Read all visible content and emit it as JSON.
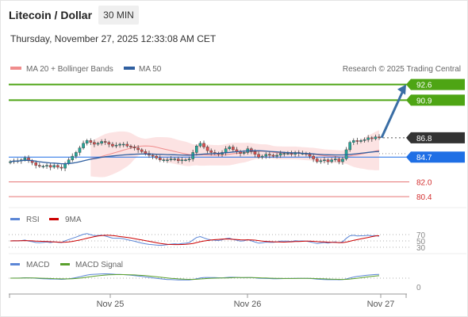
{
  "header": {
    "title": "Litecoin / Dollar",
    "timeframe": "30 MIN",
    "timestamp": "Thursday, November 27, 2025 12:33:08 AM CET"
  },
  "legend": {
    "bollinger": "MA 20 + Bollinger Bands",
    "ma50": "MA 50",
    "credit": "Research © 2025 Trading Central"
  },
  "colors": {
    "bollinger": "#f08c8c",
    "ma50": "#2f5fa0",
    "candle_up": "#26a69a",
    "candle_down": "#e05050",
    "resistance": "#4ea514",
    "support": "#e67575",
    "current_price": "#333333",
    "pivot": "#1f6fe5",
    "arrow": "#3a6ea5",
    "rsi": "#5b86d6",
    "rsi_ma": "#cc0000",
    "macd": "#5b86d6",
    "macd_signal": "#5aa02c"
  },
  "chart_data": {
    "type": "candlestick",
    "instrument": "Litecoin / Dollar",
    "timeframe": "30 MIN",
    "ylim": [
      79.2,
      93.6
    ],
    "x_ticks": [
      "Nov 25",
      "Nov 26",
      "Nov 27"
    ],
    "levels": [
      {
        "value": 92.6,
        "label": "92.6",
        "type": "resistance"
      },
      {
        "value": 90.9,
        "label": "90.9",
        "type": "resistance"
      },
      {
        "value": 86.8,
        "label": "86.8",
        "type": "current"
      },
      {
        "value": 84.7,
        "label": "84.7",
        "type": "pivot"
      },
      {
        "value": 82.0,
        "label": "82.0",
        "type": "support"
      },
      {
        "value": 80.4,
        "label": "80.4",
        "type": "support"
      }
    ],
    "arrow": {
      "from": 86.8,
      "to": 92.6
    },
    "closes": [
      84.2,
      84.3,
      84.3,
      84.4,
      84.6,
      84.3,
      84.1,
      83.8,
      83.7,
      83.7,
      83.8,
      83.6,
      83.8,
      83.6,
      83.5,
      84.0,
      84.4,
      84.8,
      85.2,
      85.7,
      86.2,
      86.5,
      86.3,
      86.1,
      86.2,
      86.4,
      86.3,
      86.1,
      85.9,
      86.0,
      86.1,
      86.1,
      85.9,
      85.8,
      85.7,
      85.5,
      85.3,
      85.1,
      84.9,
      84.8,
      84.6,
      84.4,
      84.4,
      84.4,
      84.5,
      84.5,
      84.3,
      84.4,
      84.4,
      84.5,
      85.2,
      85.9,
      86.2,
      85.8,
      85.4,
      85.2,
      85.1,
      85.0,
      85.2,
      85.6,
      85.8,
      85.5,
      85.3,
      85.1,
      85.2,
      85.6,
      85.3,
      85.0,
      84.7,
      84.8,
      85.0,
      84.9,
      84.8,
      84.9,
      85.1,
      85.1,
      85.1,
      85.0,
      85.2,
      85.1,
      85.1,
      85.0,
      84.8,
      84.5,
      84.2,
      84.3,
      84.4,
      84.2,
      84.4,
      84.5,
      84.2,
      84.5,
      85.5,
      86.3,
      86.5,
      86.4,
      86.5,
      86.6,
      86.8,
      86.7,
      86.9,
      86.8
    ],
    "rsi_levels": [
      70,
      50,
      30
    ],
    "macd_zero": 0,
    "indicators": {
      "rsi": "RSI",
      "rsi_ma": "9MA",
      "macd": "MACD",
      "macd_signal": "MACD Signal"
    }
  }
}
